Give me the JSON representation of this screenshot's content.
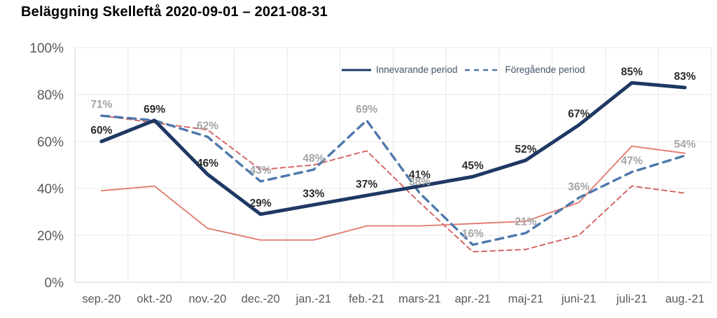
{
  "title": "Beläggning Skelleftå 2020-09-01 – 2021-08-31",
  "chart_data": {
    "type": "line",
    "categories": [
      "sep.-20",
      "okt.-20",
      "nov.-20",
      "dec.-20",
      "jan.-21",
      "feb.-21",
      "mars-21",
      "apr.-21",
      "maj-21",
      "juni-21",
      "juli-21",
      "aug.-21"
    ],
    "series": [
      {
        "name": "Innevarande period",
        "style": "solid",
        "color": "#1f3864",
        "values": [
          60,
          69,
          46,
          29,
          33,
          37,
          41,
          45,
          52,
          67,
          85,
          83
        ],
        "data_labels": [
          "60%",
          "69%",
          "46%",
          "29%",
          "33%",
          "37%",
          "41%",
          "45%",
          "52%",
          "67%",
          "85%",
          "83%"
        ],
        "label_color": "#2b2b2b"
      },
      {
        "name": "Föregående period",
        "style": "dashed",
        "color": "#4d78ab",
        "values": [
          71,
          69,
          62,
          43,
          48,
          69,
          38,
          16,
          21,
          36,
          47,
          54
        ],
        "data_labels": [
          "71%",
          null,
          "62%",
          "43%",
          "48%",
          "69%",
          "38%",
          "16%",
          "21%",
          "36%",
          "47%",
          "54%"
        ],
        "label_color": "#a5a5a5"
      },
      {
        "name": "",
        "style": "solid",
        "color": "#e27d74",
        "values": [
          39,
          41,
          23,
          18,
          18,
          24,
          24,
          25,
          26,
          34,
          58,
          55
        ],
        "data_labels": null,
        "label_color": null
      },
      {
        "name": "",
        "style": "dashed",
        "color": "#d4625e",
        "values": [
          71,
          68,
          65,
          48,
          50,
          56,
          34,
          13,
          14,
          20,
          41,
          38
        ],
        "data_labels": null,
        "label_color": null
      }
    ],
    "ylim": [
      0,
      100
    ],
    "y_tick_labels": [
      "0%",
      "20%",
      "40%",
      "60%",
      "80%",
      "100%"
    ],
    "grid": true,
    "legend": {
      "position": "top-inside",
      "entries": [
        "Innevarande period",
        "Föregående period"
      ]
    }
  }
}
